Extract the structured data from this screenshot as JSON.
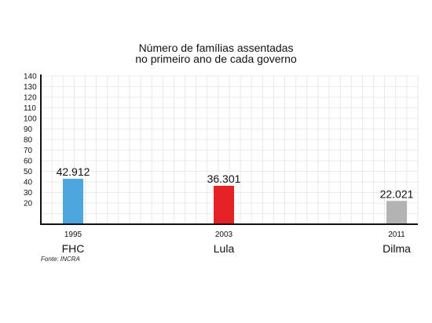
{
  "chart_data": {
    "type": "bar",
    "title": [
      "Número de famílias assentadas",
      "no primeiro ano de cada governo"
    ],
    "categories": [
      "1995",
      "2003",
      "2011"
    ],
    "category_names": [
      "FHC",
      "Lula",
      "Dilma"
    ],
    "values": [
      42.912,
      36.301,
      22.021
    ],
    "value_labels": [
      "42.912",
      "36.301",
      "22.021"
    ],
    "colors": [
      "#4ea6df",
      "#e52226",
      "#b3b3b3"
    ],
    "yticks": [
      "140",
      "130",
      "120",
      "110",
      "100",
      "90",
      "80",
      "70",
      "60",
      "50",
      "40",
      "30",
      "20"
    ],
    "ylim": [
      0,
      140
    ],
    "grid": true,
    "source": "Fonte: INCRA"
  }
}
